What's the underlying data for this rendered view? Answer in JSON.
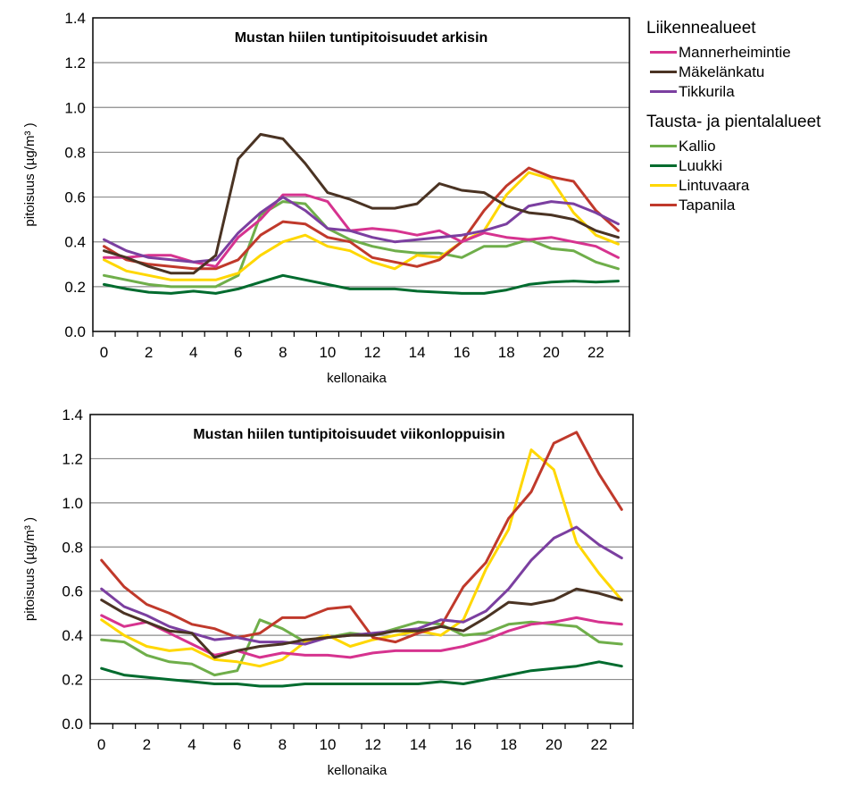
{
  "legend": {
    "groups": [
      {
        "heading": "Liikennealueet",
        "items": [
          {
            "label": "Mannerheimintie",
            "color": "#D6338F"
          },
          {
            "label": "Mäkelänkatu",
            "color": "#4A3323"
          },
          {
            "label": "Tikkurila",
            "color": "#7B3FA0"
          }
        ]
      },
      {
        "heading": "Tausta- ja pientalalueet",
        "items": [
          {
            "label": "Kallio",
            "color": "#6FAE4A"
          },
          {
            "label": "Luukki",
            "color": "#006B2E"
          },
          {
            "label": "Lintuvaara",
            "color": "#FFD700"
          },
          {
            "label": "Tapanila",
            "color": "#C0392B"
          }
        ]
      }
    ]
  },
  "chart_data": [
    {
      "type": "line",
      "title": "Mustan hiilen tuntipitoisuudet arkisin",
      "xlabel": "kellonaika",
      "ylabel": "pitoisuus (µg/m³ )",
      "ylim": [
        0,
        1.4
      ],
      "xlim": [
        0,
        23
      ],
      "yticks": [
        "0.0",
        "0.2",
        "0.4",
        "0.6",
        "0.8",
        "1.0",
        "1.2",
        "1.4"
      ],
      "xticks": [
        "0",
        "2",
        "4",
        "6",
        "8",
        "10",
        "12",
        "14",
        "16",
        "18",
        "20",
        "22"
      ],
      "grid": "horizontal",
      "x": [
        0,
        1,
        2,
        3,
        4,
        5,
        6,
        7,
        8,
        9,
        10,
        11,
        12,
        13,
        14,
        15,
        16,
        17,
        18,
        19,
        20,
        21,
        22,
        23
      ],
      "series": [
        {
          "name": "Kallio",
          "color": "#6FAE4A",
          "values": [
            0.25,
            0.23,
            0.21,
            0.2,
            0.2,
            0.2,
            0.25,
            0.52,
            0.58,
            0.57,
            0.46,
            0.41,
            0.38,
            0.36,
            0.35,
            0.35,
            0.33,
            0.38,
            0.38,
            0.41,
            0.37,
            0.36,
            0.31,
            0.28
          ]
        },
        {
          "name": "Lintuvaara",
          "color": "#FFD700",
          "values": [
            0.32,
            0.27,
            0.25,
            0.23,
            0.23,
            0.23,
            0.26,
            0.34,
            0.4,
            0.43,
            0.38,
            0.36,
            0.31,
            0.28,
            0.34,
            0.33,
            0.4,
            0.45,
            0.61,
            0.71,
            0.68,
            0.53,
            0.43,
            0.39
          ]
        },
        {
          "name": "Tapanila",
          "color": "#C0392B",
          "values": [
            0.38,
            0.32,
            0.3,
            0.29,
            0.28,
            0.28,
            0.32,
            0.43,
            0.49,
            0.48,
            0.42,
            0.4,
            0.33,
            0.31,
            0.29,
            0.32,
            0.4,
            0.54,
            0.65,
            0.73,
            0.69,
            0.67,
            0.54,
            0.45
          ]
        },
        {
          "name": "Luukki",
          "color": "#006B2E",
          "values": [
            0.21,
            0.19,
            0.175,
            0.17,
            0.18,
            0.17,
            0.19,
            0.22,
            0.25,
            0.23,
            0.21,
            0.19,
            0.19,
            0.19,
            0.18,
            0.175,
            0.17,
            0.17,
            0.185,
            0.21,
            0.22,
            0.225,
            0.22,
            0.225
          ]
        },
        {
          "name": "Mannerheimintie",
          "color": "#D6338F",
          "values": [
            0.33,
            0.33,
            0.34,
            0.34,
            0.31,
            0.29,
            0.42,
            0.5,
            0.61,
            0.61,
            0.58,
            0.45,
            0.46,
            0.45,
            0.43,
            0.45,
            0.4,
            0.44,
            0.42,
            0.41,
            0.42,
            0.4,
            0.38,
            0.33
          ]
        },
        {
          "name": "Tikkurila",
          "color": "#7B3FA0",
          "values": [
            0.41,
            0.36,
            0.33,
            0.32,
            0.31,
            0.32,
            0.44,
            0.53,
            0.6,
            0.54,
            0.46,
            0.45,
            0.42,
            0.4,
            0.41,
            0.42,
            0.43,
            0.45,
            0.48,
            0.56,
            0.58,
            0.57,
            0.53,
            0.48
          ]
        },
        {
          "name": "Mäkelänkatu",
          "color": "#4A3323",
          "values": [
            0.36,
            0.33,
            0.29,
            0.26,
            0.26,
            0.34,
            0.77,
            0.88,
            0.86,
            0.75,
            0.62,
            0.59,
            0.55,
            0.55,
            0.57,
            0.66,
            0.63,
            0.62,
            0.56,
            0.53,
            0.52,
            0.5,
            0.45,
            0.42
          ]
        }
      ]
    },
    {
      "type": "line",
      "title": "Mustan hiilen tuntipitoisuudet viikonloppuisin",
      "xlabel": "kellonaika",
      "ylabel": "pitoisuus (µg/m³ )",
      "ylim": [
        0,
        1.4
      ],
      "xlim": [
        0,
        23
      ],
      "yticks": [
        "0.0",
        "0.2",
        "0.4",
        "0.6",
        "0.8",
        "1.0",
        "1.2",
        "1.4"
      ],
      "xticks": [
        "0",
        "2",
        "4",
        "6",
        "8",
        "10",
        "12",
        "14",
        "16",
        "18",
        "20",
        "22"
      ],
      "grid": "horizontal",
      "x": [
        0,
        1,
        2,
        3,
        4,
        5,
        6,
        7,
        8,
        9,
        10,
        11,
        12,
        13,
        14,
        15,
        16,
        17,
        18,
        19,
        20,
        21,
        22,
        23
      ],
      "series": [
        {
          "name": "Kallio",
          "color": "#6FAE4A",
          "values": [
            0.38,
            0.37,
            0.31,
            0.28,
            0.27,
            0.22,
            0.24,
            0.47,
            0.43,
            0.37,
            0.39,
            0.41,
            0.4,
            0.43,
            0.46,
            0.45,
            0.4,
            0.41,
            0.45,
            0.46,
            0.45,
            0.44,
            0.37,
            0.36
          ]
        },
        {
          "name": "Lintuvaara",
          "color": "#FFD700",
          "values": [
            0.47,
            0.4,
            0.35,
            0.33,
            0.34,
            0.29,
            0.28,
            0.26,
            0.29,
            0.37,
            0.4,
            0.35,
            0.38,
            0.4,
            0.42,
            0.4,
            0.47,
            0.7,
            0.88,
            1.24,
            1.15,
            0.82,
            0.68,
            0.56
          ]
        },
        {
          "name": "Tapanila",
          "color": "#C0392B",
          "values": [
            0.74,
            0.62,
            0.54,
            0.5,
            0.45,
            0.43,
            0.39,
            0.41,
            0.48,
            0.48,
            0.52,
            0.53,
            0.39,
            0.37,
            0.41,
            0.44,
            0.62,
            0.73,
            0.93,
            1.05,
            1.27,
            1.32,
            1.13,
            0.97
          ]
        },
        {
          "name": "Luukki",
          "color": "#006B2E",
          "values": [
            0.25,
            0.22,
            0.21,
            0.2,
            0.19,
            0.18,
            0.18,
            0.17,
            0.17,
            0.18,
            0.18,
            0.18,
            0.18,
            0.18,
            0.18,
            0.19,
            0.18,
            0.2,
            0.22,
            0.24,
            0.25,
            0.26,
            0.28,
            0.26
          ]
        },
        {
          "name": "Mannerheimintie",
          "color": "#D6338F",
          "values": [
            0.49,
            0.44,
            0.46,
            0.41,
            0.36,
            0.31,
            0.33,
            0.3,
            0.32,
            0.31,
            0.31,
            0.3,
            0.32,
            0.33,
            0.33,
            0.33,
            0.35,
            0.38,
            0.42,
            0.45,
            0.46,
            0.48,
            0.46,
            0.45
          ]
        },
        {
          "name": "Tikkurila",
          "color": "#7B3FA0",
          "values": [
            0.61,
            0.53,
            0.49,
            0.44,
            0.41,
            0.38,
            0.39,
            0.37,
            0.37,
            0.36,
            0.39,
            0.4,
            0.41,
            0.42,
            0.43,
            0.47,
            0.46,
            0.51,
            0.61,
            0.74,
            0.84,
            0.89,
            0.81,
            0.75
          ]
        },
        {
          "name": "Mäkelänkatu",
          "color": "#4A3323",
          "values": [
            0.56,
            0.5,
            0.46,
            0.42,
            0.41,
            0.3,
            0.33,
            0.35,
            0.36,
            0.38,
            0.39,
            0.4,
            0.4,
            0.42,
            0.42,
            0.44,
            0.42,
            0.48,
            0.55,
            0.54,
            0.56,
            0.61,
            0.59,
            0.56
          ]
        }
      ]
    }
  ]
}
